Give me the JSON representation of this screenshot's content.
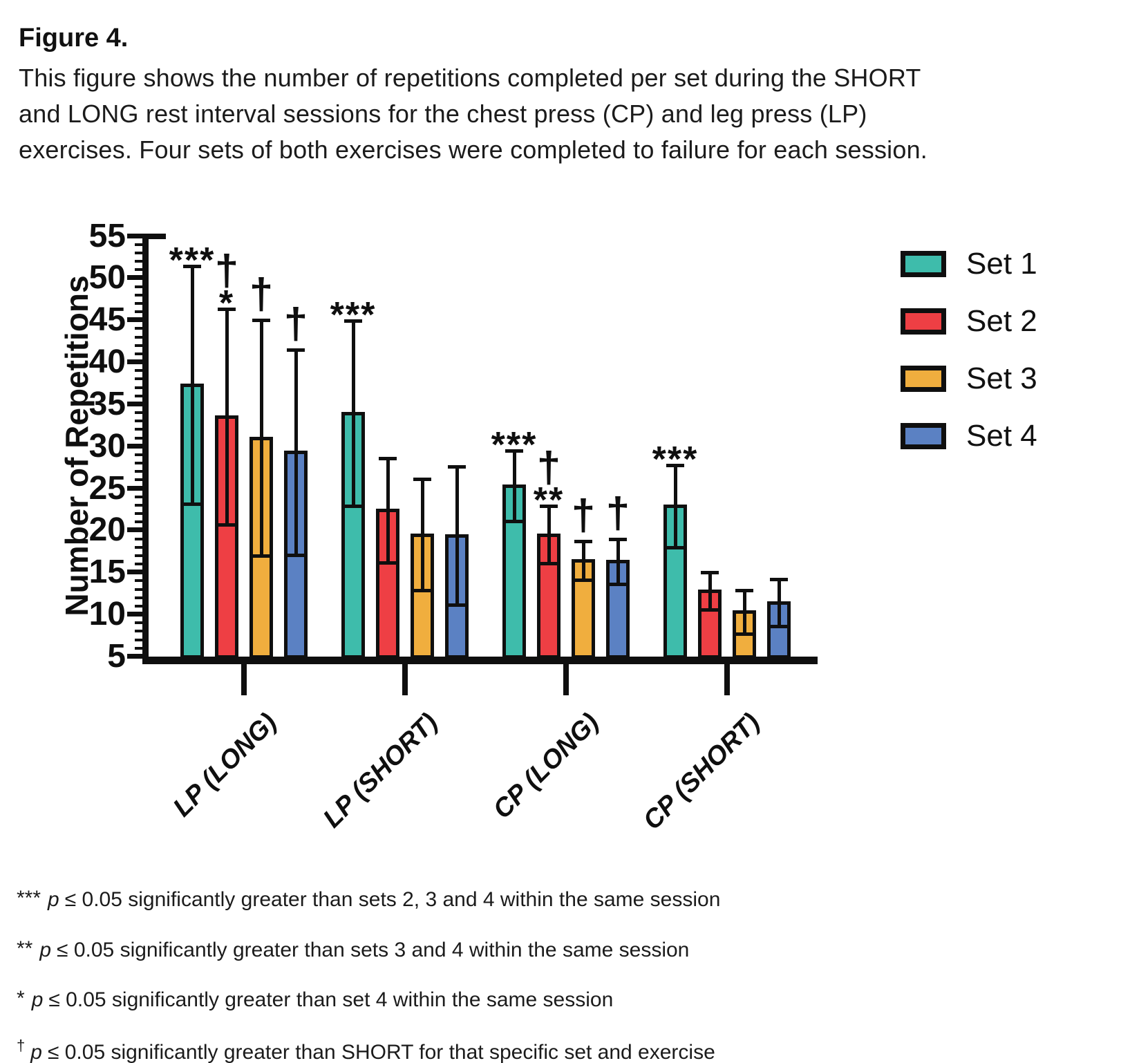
{
  "figure": {
    "label": "Figure 4.",
    "caption_lines": [
      "This figure shows the number of repetitions completed per set during the SHORT",
      "and LONG rest interval sessions for the chest press (CP) and leg press (LP)",
      "exercises. Four sets of both exercises were completed to failure for each session."
    ]
  },
  "chart_data": {
    "type": "bar",
    "title": "",
    "xlabel": "",
    "ylabel": "Number of Repetitions",
    "ylim": [
      5,
      55
    ],
    "ytick_major": 5,
    "ytick_minor": 1,
    "grid": "off",
    "legend_position": "right",
    "error_bars": "plus-minus SD",
    "sets": [
      {
        "label": "Set 1",
        "color": "#3ebcab"
      },
      {
        "label": "Set 2",
        "color": "#ee3f44"
      },
      {
        "label": "Set 3",
        "color": "#f0ae3e"
      },
      {
        "label": "Set 4",
        "color": "#5b81c3"
      }
    ],
    "categories": [
      "LP (LONG)",
      "LP (SHORT)",
      "CP (LONG)",
      "CP (SHORT)"
    ],
    "groups": [
      {
        "label": "LP (LONG)",
        "bars": [
          {
            "set": "Set 1",
            "mean": 37.3,
            "sd": 14.1,
            "sig": [
              "***"
            ]
          },
          {
            "set": "Set 2",
            "mean": 33.5,
            "sd": 12.8,
            "sig": [
              "†",
              "*"
            ]
          },
          {
            "set": "Set 3",
            "mean": 31.0,
            "sd": 14.0,
            "sig": [
              "†"
            ]
          },
          {
            "set": "Set 4",
            "mean": 29.3,
            "sd": 12.2,
            "sig": [
              "†"
            ]
          }
        ]
      },
      {
        "label": "LP (SHORT)",
        "bars": [
          {
            "set": "Set 1",
            "mean": 33.9,
            "sd": 11.0,
            "sig": [
              "***"
            ]
          },
          {
            "set": "Set 2",
            "mean": 22.4,
            "sd": 6.2,
            "sig": []
          },
          {
            "set": "Set 3",
            "mean": 19.5,
            "sd": 6.6,
            "sig": []
          },
          {
            "set": "Set 4",
            "mean": 19.4,
            "sd": 8.2,
            "sig": []
          }
        ]
      },
      {
        "label": "CP (LONG)",
        "bars": [
          {
            "set": "Set 1",
            "mean": 25.3,
            "sd": 4.2,
            "sig": [
              "***"
            ]
          },
          {
            "set": "Set 2",
            "mean": 19.5,
            "sd": 3.4,
            "sig": [
              "†",
              "**"
            ]
          },
          {
            "set": "Set 3",
            "mean": 16.4,
            "sd": 2.3,
            "sig": [
              "†"
            ]
          },
          {
            "set": "Set 4",
            "mean": 16.3,
            "sd": 2.7,
            "sig": [
              "†"
            ]
          }
        ]
      },
      {
        "label": "CP (SHORT)",
        "bars": [
          {
            "set": "Set 1",
            "mean": 22.9,
            "sd": 4.9,
            "sig": [
              "***"
            ]
          },
          {
            "set": "Set 2",
            "mean": 12.8,
            "sd": 2.2,
            "sig": []
          },
          {
            "set": "Set 3",
            "mean": 10.3,
            "sd": 2.6,
            "sig": []
          },
          {
            "set": "Set 4",
            "mean": 11.4,
            "sd": 2.8,
            "sig": []
          }
        ]
      }
    ]
  },
  "footnotes": [
    {
      "symbol": "***",
      "p": "p",
      "rest": "≤ 0.05 significantly greater than sets 2, 3 and 4 within the same session"
    },
    {
      "symbol": "**",
      "p": "p",
      "rest": "≤ 0.05 significantly greater than sets 3 and 4 within the same session"
    },
    {
      "symbol": "*",
      "p": "p",
      "rest": "≤ 0.05 significantly greater than set 4 within the same session"
    },
    {
      "symbol": "†",
      "p": "p",
      "rest": "≤ 0.05 significantly greater than SHORT for that specific set and exercise"
    }
  ]
}
